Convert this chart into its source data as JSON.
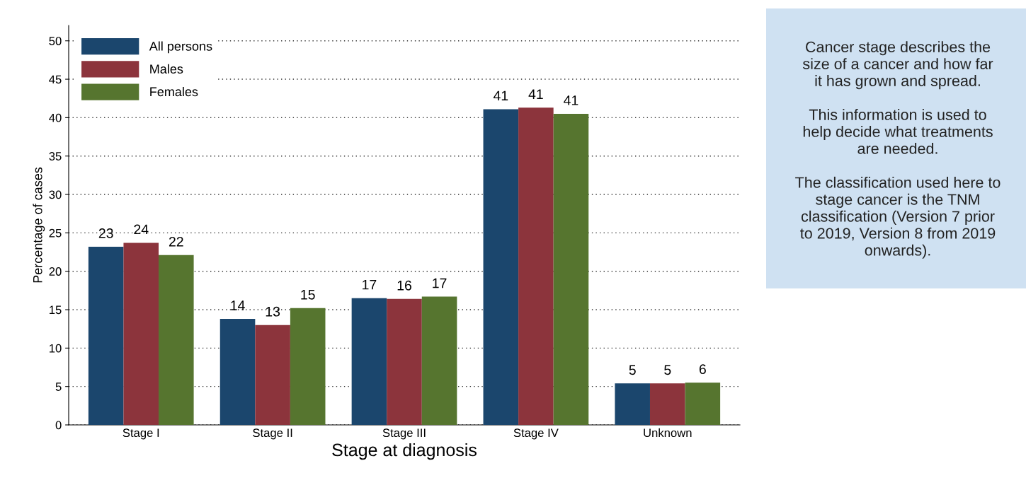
{
  "chart_data": {
    "type": "bar",
    "xlabel": "Stage at diagnosis",
    "ylabel": "Percentage of cases",
    "categories": [
      "Stage I",
      "Stage II",
      "Stage III",
      "Stage IV",
      "Unknown"
    ],
    "series": [
      {
        "name": "All persons",
        "color": "#1b466d",
        "values": [
          23.2,
          13.8,
          16.5,
          41.1,
          5.4
        ],
        "value_labels": [
          "23",
          "14",
          "17",
          "41",
          "5"
        ]
      },
      {
        "name": "Males",
        "color": "#8c343c",
        "values": [
          23.7,
          13.0,
          16.4,
          41.3,
          5.4
        ],
        "value_labels": [
          "24",
          "13",
          "16",
          "41",
          "5"
        ]
      },
      {
        "name": "Females",
        "color": "#56752f",
        "values": [
          22.1,
          15.2,
          16.7,
          40.5,
          5.5
        ],
        "value_labels": [
          "22",
          "15",
          "17",
          "41",
          "6"
        ]
      }
    ],
    "ylim": [
      0,
      52
    ],
    "yticks": [
      0,
      5,
      10,
      15,
      20,
      25,
      30,
      35,
      40,
      45,
      50
    ],
    "grid": "y",
    "legend": "top left",
    "annotations": [
      "Cancer stage describes the\nsize of a cancer and how far\nit has grown and spread.\n\nThis information is used to\nhelp decide what treatments\nare needed.\n\nThe classification used here to\nstage cancer is the TNM\nclassification (Version 7 prior\nto 2019, Version 8 from 2019\nonwards)."
    ]
  }
}
